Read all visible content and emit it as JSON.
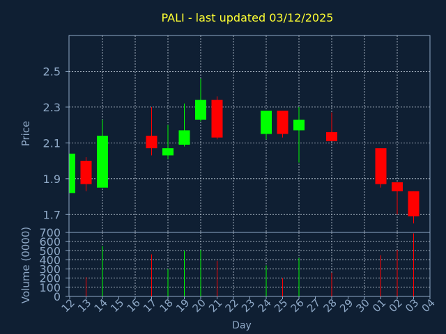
{
  "chart_data": {
    "type": "candlestick",
    "title": "PALI - last updated 03/12/2025",
    "xlabel": "Day",
    "price_ylabel": "Price",
    "volume_ylabel": "Volume (0000)",
    "price_ylim": [
      1.6,
      2.7
    ],
    "price_ticks": [
      "1.7",
      "1.9",
      "2.1",
      "2.3",
      "2.5"
    ],
    "volume_ylim": [
      0,
      700
    ],
    "volume_ticks": [
      "0",
      "100",
      "200",
      "300",
      "400",
      "500",
      "600",
      "700"
    ],
    "x_labels": [
      "12",
      "13",
      "14",
      "15",
      "16",
      "17",
      "18",
      "19",
      "20",
      "21",
      "22",
      "23",
      "24",
      "25",
      "26",
      "27",
      "28",
      "29",
      "30",
      "01",
      "02",
      "03",
      "04"
    ],
    "grid": true,
    "up_color": "#00ff00",
    "down_color": "#ff0000",
    "candles": [
      {
        "day": "12",
        "open": 1.82,
        "high": 2.04,
        "low": 1.82,
        "close": 2.04,
        "volume": 0
      },
      {
        "day": "13",
        "open": 2.0,
        "high": 2.02,
        "low": 1.83,
        "close": 1.87,
        "volume": 210
      },
      {
        "day": "14",
        "open": 1.85,
        "high": 2.23,
        "low": 1.85,
        "close": 2.14,
        "volume": 550
      },
      {
        "day": "17",
        "open": 2.14,
        "high": 2.3,
        "low": 2.03,
        "close": 2.07,
        "volume": 460
      },
      {
        "day": "18",
        "open": 2.03,
        "high": 2.2,
        "low": 2.01,
        "close": 2.07,
        "volume": 300
      },
      {
        "day": "19",
        "open": 2.09,
        "high": 2.32,
        "low": 2.08,
        "close": 2.17,
        "volume": 500
      },
      {
        "day": "20",
        "open": 2.23,
        "high": 2.46,
        "low": 2.22,
        "close": 2.34,
        "volume": 510
      },
      {
        "day": "21",
        "open": 2.34,
        "high": 2.36,
        "low": 2.12,
        "close": 2.13,
        "volume": 390
      },
      {
        "day": "24",
        "open": 2.15,
        "high": 2.28,
        "low": 2.12,
        "close": 2.28,
        "volume": 340
      },
      {
        "day": "25",
        "open": 2.28,
        "high": 2.28,
        "low": 2.13,
        "close": 2.15,
        "volume": 200
      },
      {
        "day": "26",
        "open": 2.17,
        "high": 2.3,
        "low": 1.99,
        "close": 2.23,
        "volume": 420
      },
      {
        "day": "28",
        "open": 2.16,
        "high": 2.27,
        "low": 2.11,
        "close": 2.11,
        "volume": 260
      },
      {
        "day": "01",
        "open": 2.07,
        "high": 2.07,
        "low": 1.85,
        "close": 1.87,
        "volume": 450
      },
      {
        "day": "02",
        "open": 1.88,
        "high": 1.88,
        "low": 1.7,
        "close": 1.83,
        "volume": 510
      },
      {
        "day": "03",
        "open": 1.83,
        "high": 1.83,
        "low": 1.65,
        "close": 1.69,
        "volume": 690
      }
    ]
  }
}
